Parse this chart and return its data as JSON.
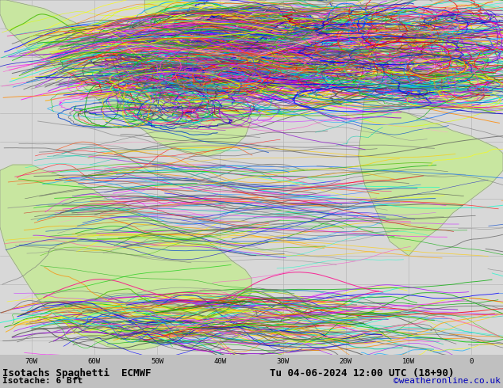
{
  "title_line1": "Isotachs Spaghetti  ECMWF",
  "title_line2": "Tu 04-06-2024 12:00 UTC (18+90)",
  "subtitle": "Isotache: 6 Bft",
  "copyright": "©weatheronline.co.uk",
  "land_color": "#c8e6a0",
  "ocean_color": "#d8d8d8",
  "grid_color": "#b8b8b8",
  "border_color": "#888888",
  "coast_color": "#888888",
  "text_color": "#000000",
  "copyright_color": "#0000bb",
  "bottom_bar_color": "#c0c0c0",
  "figsize": [
    6.34,
    4.9
  ],
  "dpi": 100,
  "font_size_title": 9,
  "font_size_subtitle": 8,
  "font_size_copyright": 8
}
